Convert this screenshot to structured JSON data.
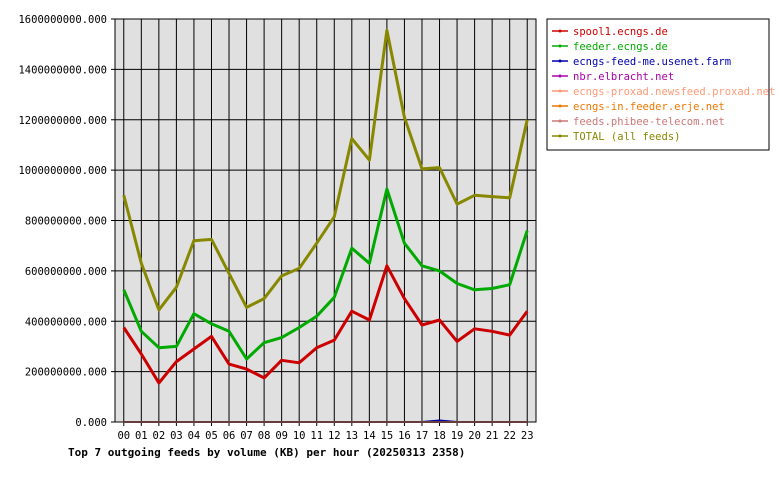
{
  "chart_data": {
    "type": "line",
    "title": "Top 7 outgoing feeds by volume (KB) per hour (20250313 2358)",
    "x": [
      "00",
      "01",
      "02",
      "03",
      "04",
      "05",
      "06",
      "07",
      "08",
      "09",
      "10",
      "11",
      "12",
      "13",
      "14",
      "15",
      "16",
      "17",
      "18",
      "19",
      "20",
      "21",
      "22",
      "23"
    ],
    "ylim": [
      0,
      1600000000
    ],
    "yticks": [
      0,
      200000000,
      400000000,
      600000000,
      800000000,
      1000000000,
      1200000000,
      1400000000,
      1600000000
    ],
    "ytick_labels": [
      "0.000",
      "200000000.000",
      "400000000.000",
      "600000000.000",
      "800000000.000",
      "1000000000.000",
      "1200000000.000",
      "1400000000.000",
      "1600000000.000"
    ],
    "grid": true,
    "legend_position": "right",
    "series": [
      {
        "name": "spool1.ecngs.de",
        "color": "#cc0000",
        "values": [
          375000000,
          270000000,
          155000000,
          240000000,
          290000000,
          340000000,
          230000000,
          210000000,
          175000000,
          245000000,
          235000000,
          295000000,
          325000000,
          440000000,
          405000000,
          620000000,
          490000000,
          385000000,
          405000000,
          320000000,
          370000000,
          360000000,
          345000000,
          440000000
        ]
      },
      {
        "name": "feeder.ecngs.de",
        "color": "#00aa00",
        "values": [
          525000000,
          360000000,
          295000000,
          300000000,
          430000000,
          390000000,
          360000000,
          250000000,
          315000000,
          335000000,
          375000000,
          420000000,
          495000000,
          690000000,
          630000000,
          925000000,
          710000000,
          620000000,
          600000000,
          550000000,
          525000000,
          530000000,
          545000000,
          760000000
        ]
      },
      {
        "name": "ecngs-feed-me.usenet.farm",
        "color": "#0000aa",
        "values": [
          0,
          0,
          0,
          0,
          0,
          0,
          0,
          0,
          0,
          0,
          0,
          0,
          0,
          0,
          0,
          0,
          0,
          0,
          6000000,
          0,
          0,
          0,
          0,
          0
        ]
      },
      {
        "name": "nbr.elbracht.net",
        "color": "#aa00aa",
        "values": [
          0,
          0,
          0,
          0,
          0,
          0,
          0,
          0,
          0,
          0,
          0,
          0,
          0,
          0,
          0,
          0,
          0,
          0,
          0,
          0,
          0,
          0,
          0,
          0
        ]
      },
      {
        "name": "ecngs-proxad.newsfeed.proxad.net",
        "color": "#ff9977",
        "values": [
          0,
          0,
          0,
          0,
          0,
          0,
          0,
          0,
          0,
          0,
          0,
          0,
          0,
          0,
          0,
          0,
          0,
          0,
          0,
          0,
          0,
          0,
          0,
          0
        ]
      },
      {
        "name": "ecngs-in.feeder.erje.net",
        "color": "#ee7700",
        "values": [
          0,
          0,
          0,
          0,
          0,
          0,
          0,
          0,
          0,
          0,
          0,
          0,
          0,
          0,
          0,
          0,
          0,
          0,
          0,
          0,
          0,
          0,
          0,
          0
        ]
      },
      {
        "name": "feeds.phibee-telecom.net",
        "color": "#cc7777",
        "values": [
          0,
          0,
          0,
          0,
          0,
          0,
          0,
          0,
          0,
          0,
          0,
          0,
          0,
          0,
          0,
          0,
          0,
          0,
          0,
          0,
          0,
          0,
          0,
          0
        ]
      },
      {
        "name": "TOTAL (all feeds)",
        "color": "#888800",
        "values": [
          900000000,
          630000000,
          445000000,
          535000000,
          720000000,
          725000000,
          590000000,
          455000000,
          490000000,
          580000000,
          610000000,
          710000000,
          815000000,
          1125000000,
          1040000000,
          1555000000,
          1210000000,
          1005000000,
          1010000000,
          865000000,
          900000000,
          895000000,
          890000000,
          1200000000
        ]
      }
    ]
  }
}
